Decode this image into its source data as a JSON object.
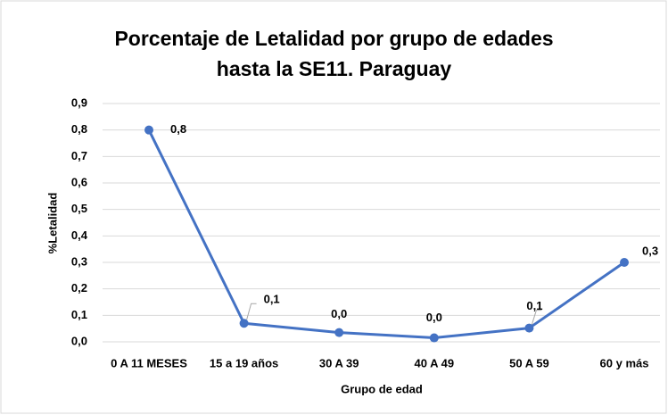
{
  "chart_data": {
    "type": "line",
    "title": "Porcentaje de Letalidad por grupo de edades hasta la SE11. Paraguay",
    "x_label": "Grupo de edad",
    "y_label": "%Letalidad",
    "categories": [
      "0 A 11 MESES",
      "15 a 19 años",
      "30 A 39",
      "40 A 49",
      "50 A 59",
      "60 y más"
    ],
    "values": [
      0.8,
      0.07,
      0.035,
      0.015,
      0.052,
      0.3
    ],
    "value_labels": [
      "0,8",
      "0,1",
      "0,0",
      "0,0",
      "0,1",
      "0,3"
    ],
    "color": "#4472c4",
    "ylim": [
      0,
      0.9
    ],
    "yticks": [
      {
        "value": 0,
        "label": "0,0"
      },
      {
        "value": 0.1,
        "label": "0,1"
      },
      {
        "value": 0.2,
        "label": "0,2"
      },
      {
        "value": 0.3,
        "label": "0,3"
      },
      {
        "value": 0.4,
        "label": "0,4"
      },
      {
        "value": 0.5,
        "label": "0,5"
      },
      {
        "value": 0.6,
        "label": "0,6"
      },
      {
        "value": 0.7,
        "label": "0,7"
      },
      {
        "value": 0.8,
        "label": "0,8"
      },
      {
        "value": 0.9,
        "label": "0,9"
      }
    ],
    "grid": true
  }
}
